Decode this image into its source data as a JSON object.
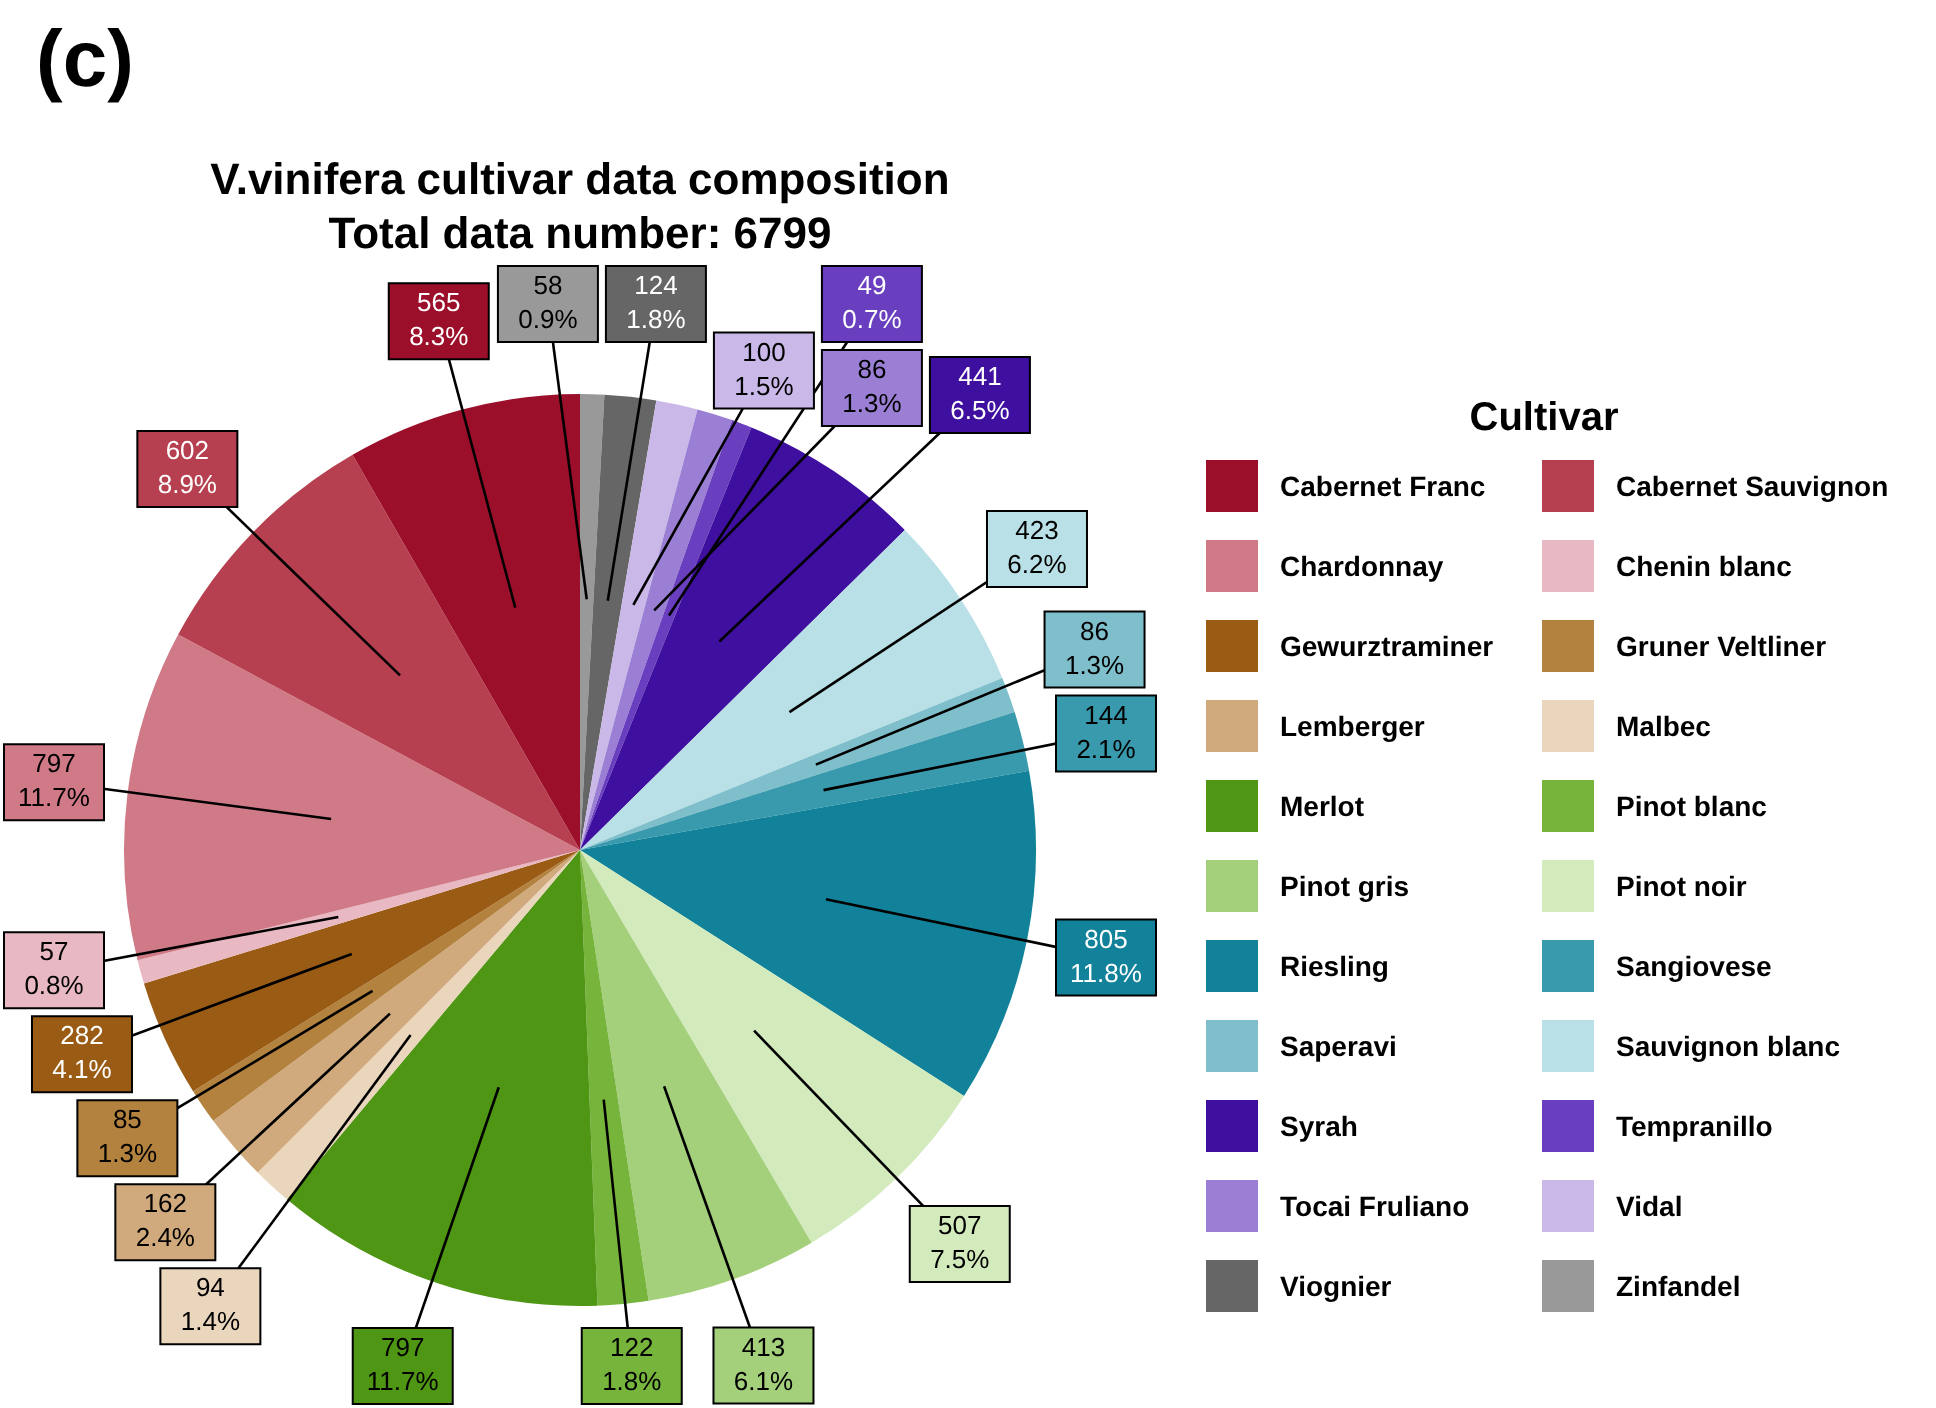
{
  "chart_data": {
    "type": "pie",
    "title": "V.vinifera cultivar data composition",
    "subtitle": "Total data number: 6799",
    "legend_title": "Cultivar",
    "legend": "right",
    "annotations": [
      "(c)"
    ],
    "categories": [
      "Zinfandel",
      "Viognier",
      "Vidal",
      "Tocai Fruliano",
      "Tempranillo",
      "Syrah",
      "Sauvignon blanc",
      "Saperavi",
      "Sangiovese",
      "Riesling",
      "Pinot noir",
      "Pinot gris",
      "Pinot blanc",
      "Merlot",
      "Malbec",
      "Lemberger",
      "Gruner Veltliner",
      "Gewurztraminer",
      "Chenin blanc",
      "Chardonnay",
      "Cabernet Sauvignon",
      "Cabernet Franc"
    ],
    "values": [
      58,
      124,
      100,
      86,
      49,
      441,
      423,
      86,
      144,
      805,
      507,
      413,
      122,
      797,
      94,
      162,
      85,
      282,
      57,
      797,
      602,
      565
    ],
    "value_labels": [
      "58\n0.9%",
      "124\n1.8%",
      "100\n1.5%",
      "86\n1.3%",
      "49\n0.7%",
      "441\n6.5%",
      "423\n6.2%",
      "86\n1.3%",
      "144\n2.1%",
      "805\n11.8%",
      "507\n7.5%",
      "413\n6.1%",
      "122\n1.8%",
      "797\n11.7%",
      "94\n1.4%",
      "162\n2.4%",
      "85\n1.3%",
      "282\n4.1%",
      "57\n0.8%",
      "797\n11.7%",
      "602\n8.9%",
      "565\n8.3%"
    ],
    "colors": [
      "#999999",
      "#666666",
      "#c9b8e8",
      "#9a7fd4",
      "#6a3fbf",
      "#3f0f9f",
      "#b9e0e6",
      "#7fbfcc",
      "#3a9aad",
      "#118299",
      "#d2eabc",
      "#a4cf7b",
      "#76b43c",
      "#4f9615",
      "#ead6bd",
      "#d0aa7c",
      "#b3823f",
      "#9a5b14",
      "#e8b9c2",
      "#d17a87",
      "#b6404f",
      "#9c0f2a"
    ]
  }
}
